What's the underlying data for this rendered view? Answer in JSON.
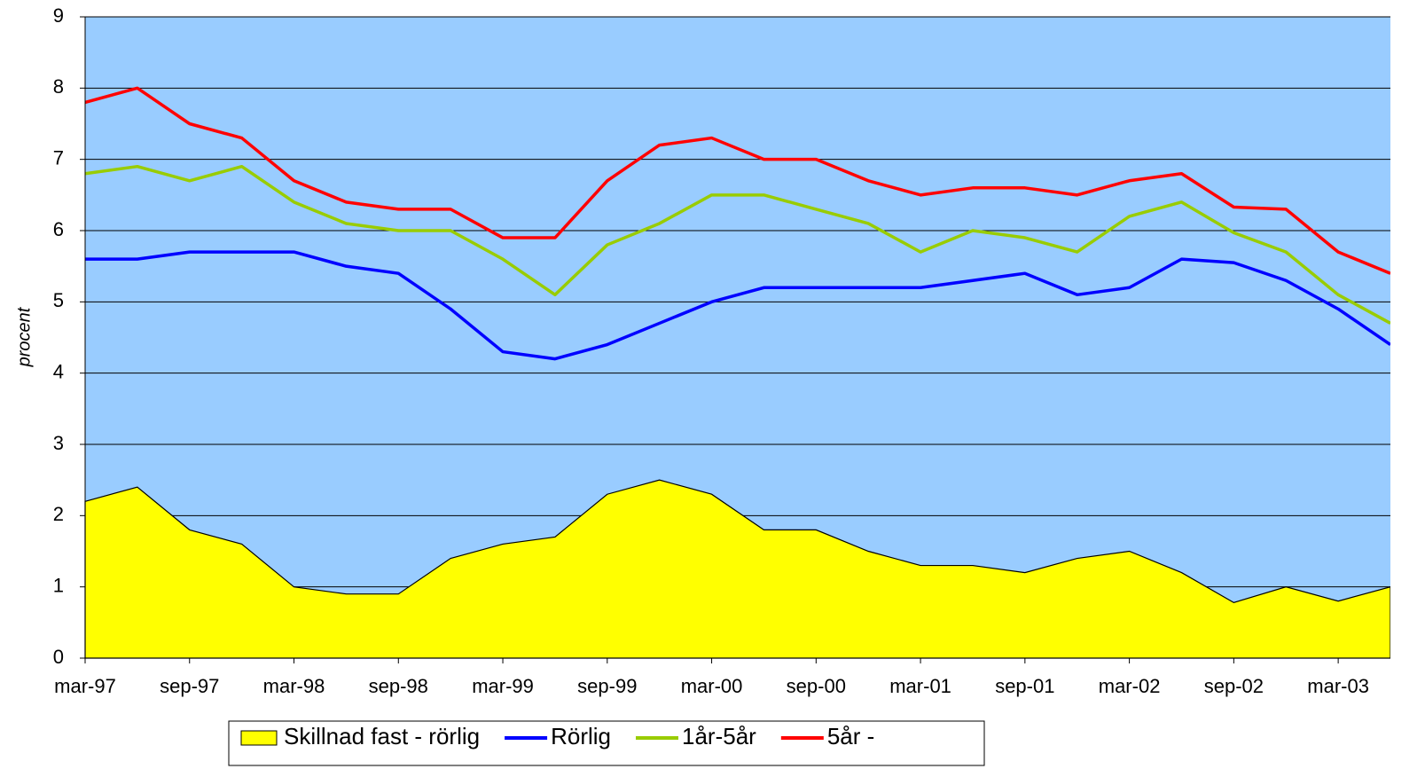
{
  "chart_data": {
    "type": "line",
    "y_label": "procent",
    "categories": [
      "mar-97",
      null,
      "sep-97",
      null,
      "mar-98",
      null,
      "sep-98",
      null,
      "mar-99",
      null,
      "sep-99",
      null,
      "mar-00",
      null,
      "sep-00",
      null,
      "mar-01",
      null,
      "sep-01",
      null,
      "mar-02",
      null,
      "sep-02",
      null,
      "mar-03",
      null
    ],
    "series": [
      {
        "name": "Skillnad fast - rörlig",
        "kind": "area",
        "color": "#ffff00",
        "values": [
          2.2,
          2.4,
          1.8,
          1.6,
          1.0,
          0.9,
          0.9,
          1.4,
          1.6,
          1.7,
          2.3,
          2.5,
          2.3,
          1.8,
          1.8,
          1.5,
          1.3,
          1.3,
          1.2,
          1.4,
          1.5,
          1.2,
          0.78,
          1.0,
          0.8,
          1.0
        ]
      },
      {
        "name": "Rörlig",
        "kind": "line",
        "color": "#0000ff",
        "values": [
          5.6,
          5.6,
          5.7,
          5.7,
          5.7,
          5.5,
          5.4,
          4.9,
          4.3,
          4.2,
          4.4,
          4.7,
          5.0,
          5.2,
          5.2,
          5.2,
          5.2,
          5.3,
          5.4,
          5.1,
          5.2,
          5.6,
          5.55,
          5.3,
          4.9,
          4.4
        ]
      },
      {
        "name": "1år-5år",
        "kind": "line",
        "color": "#99cc00",
        "values": [
          6.8,
          6.9,
          6.7,
          6.9,
          6.4,
          6.1,
          6.0,
          6.0,
          5.6,
          5.1,
          5.8,
          6.1,
          6.5,
          6.5,
          6.3,
          6.1,
          5.7,
          6.0,
          5.9,
          5.7,
          6.2,
          6.4,
          5.97,
          5.7,
          5.1,
          4.7
        ]
      },
      {
        "name": "5år -",
        "kind": "line",
        "color": "#ff0000",
        "values": [
          7.8,
          8.0,
          7.5,
          7.3,
          6.7,
          6.4,
          6.3,
          6.3,
          5.9,
          5.9,
          6.7,
          7.2,
          7.3,
          7.0,
          7.0,
          6.7,
          6.5,
          6.6,
          6.6,
          6.5,
          6.7,
          6.8,
          6.33,
          6.3,
          5.7,
          5.4
        ]
      }
    ],
    "ylim": [
      0,
      9
    ],
    "yticks": [
      0,
      1,
      2,
      3,
      4,
      5,
      6,
      7,
      8,
      9
    ],
    "grid": true,
    "plot_background": "#99ccff",
    "legend": "bottom"
  }
}
